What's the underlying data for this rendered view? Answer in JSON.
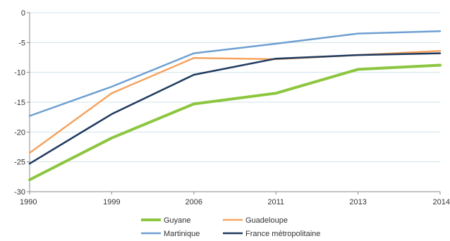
{
  "chart_data": {
    "type": "line",
    "title": "",
    "xlabel": "",
    "ylabel": "",
    "categories": [
      "1990",
      "1999",
      "2006",
      "2011",
      "2013",
      "2014"
    ],
    "ylim": [
      -30,
      0
    ],
    "yticks": [
      0,
      -5,
      -10,
      -15,
      -20,
      -25,
      -30
    ],
    "grid": true,
    "legend_position": "bottom",
    "series": [
      {
        "name": "Guyane",
        "color": "#8cc63f",
        "values": [
          -28.0,
          -21.0,
          -15.3,
          -13.5,
          -9.5,
          -8.8
        ]
      },
      {
        "name": "Guadeloupe",
        "color": "#f4a460",
        "values": [
          -23.5,
          -13.5,
          -7.6,
          -7.8,
          -7.1,
          -6.4
        ]
      },
      {
        "name": "Martinique",
        "color": "#6e9fd0",
        "values": [
          -17.3,
          -12.4,
          -6.8,
          -5.2,
          -3.5,
          -3.1
        ]
      },
      {
        "name": "France métropolitaine",
        "color": "#1f3a5f",
        "values": [
          -25.3,
          -17.0,
          -10.4,
          -7.7,
          -7.1,
          -6.8
        ]
      }
    ]
  }
}
